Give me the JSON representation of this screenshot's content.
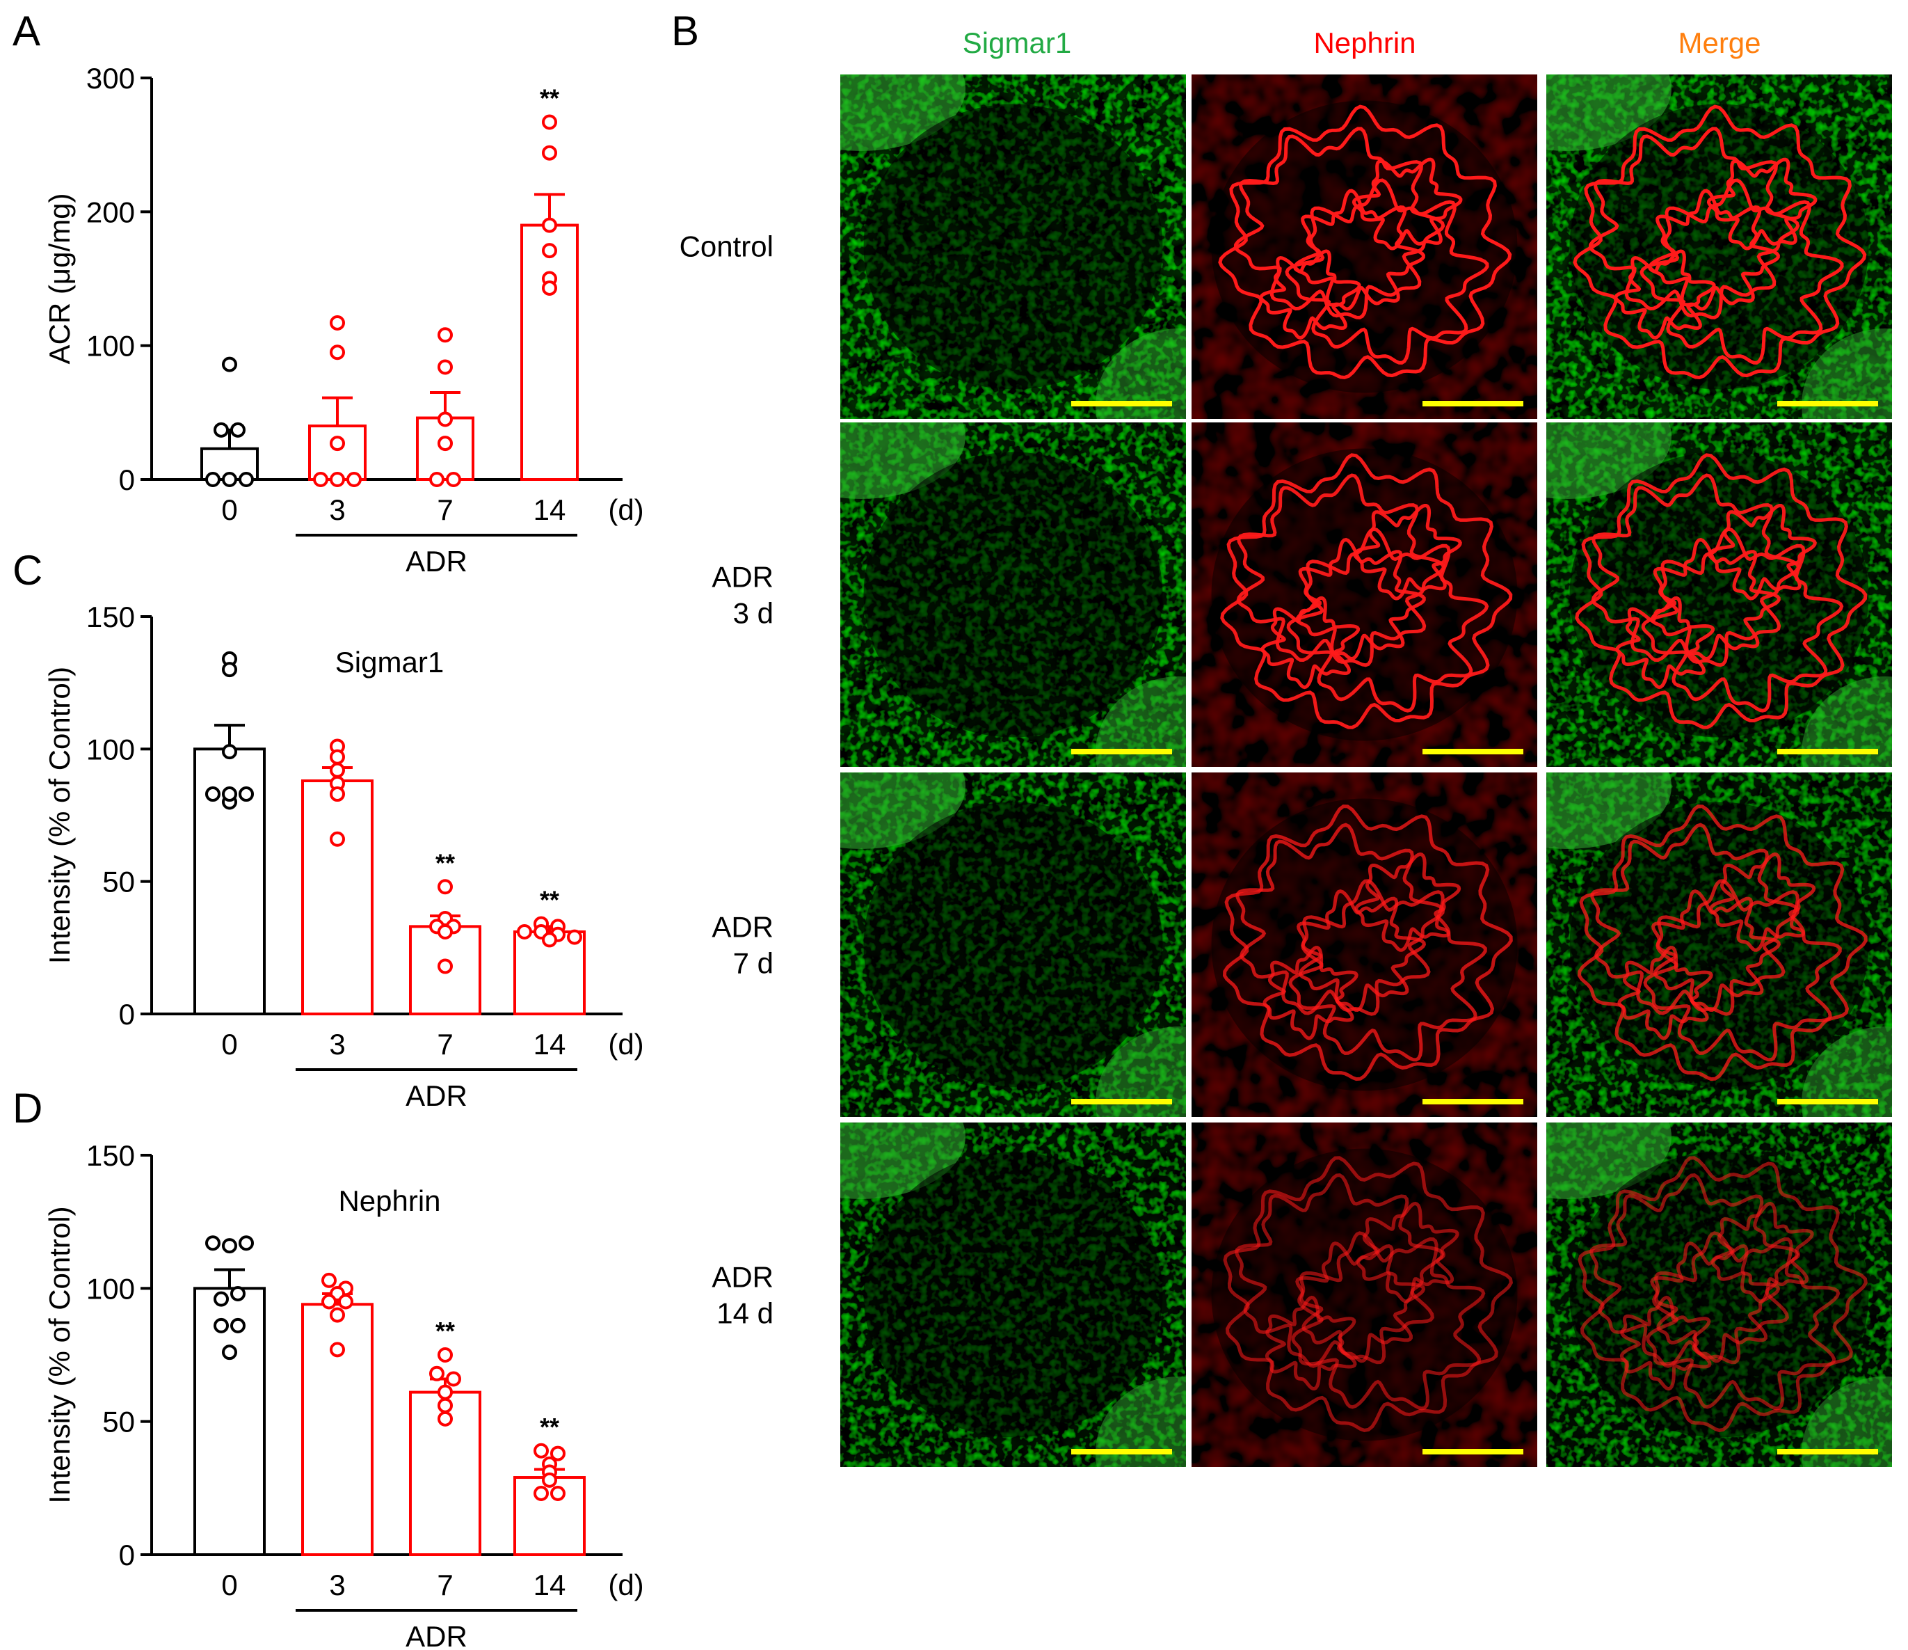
{
  "panels": {
    "A": "A",
    "B": "B",
    "C": "C",
    "D": "D"
  },
  "colors": {
    "control": "#000000",
    "adr": "#ff0000",
    "sigmar1_title": "#22aa44",
    "nephrin_title": "#ff0000",
    "merge_title": "#ff7f0e",
    "scale_bar": "#ffff00"
  },
  "chart_data": [
    {
      "id": "A",
      "type": "bar",
      "title": "",
      "ylabel": "ACR (μg/mg)",
      "xlabel_unit": "(d)",
      "group_label": "ADR",
      "ylim": [
        0,
        300
      ],
      "yticks": [
        0,
        100,
        200,
        300
      ],
      "categories": [
        "0",
        "3",
        "7",
        "14"
      ],
      "values": [
        23,
        40,
        46,
        190
      ],
      "sem": [
        14,
        21,
        19,
        23
      ],
      "points": [
        [
          86,
          37,
          37,
          0,
          0,
          0
        ],
        [
          117,
          95,
          27,
          0,
          0,
          0
        ],
        [
          108,
          84,
          45,
          27,
          0,
          0
        ],
        [
          267,
          244,
          190,
          171,
          150,
          143
        ]
      ],
      "significance": [
        "",
        "",
        "",
        "**"
      ]
    },
    {
      "id": "C",
      "type": "bar",
      "title": "Sigmar1",
      "ylabel": "Intensity (% of Control)",
      "xlabel_unit": "(d)",
      "group_label": "ADR",
      "ylim": [
        0,
        150
      ],
      "yticks": [
        0,
        50,
        100,
        150
      ],
      "categories": [
        "0",
        "3",
        "7",
        "14"
      ],
      "values": [
        100,
        88,
        33,
        31
      ],
      "sem": [
        9,
        5,
        4,
        2
      ],
      "points": [
        [
          134,
          130,
          99,
          83,
          80,
          83,
          83
        ],
        [
          101,
          97,
          92,
          87,
          83,
          66
        ],
        [
          48,
          36,
          33,
          33,
          31,
          18
        ],
        [
          34,
          33,
          31,
          31,
          30,
          29,
          28
        ]
      ],
      "significance": [
        "",
        "",
        "**",
        "**"
      ]
    },
    {
      "id": "D",
      "type": "bar",
      "title": "Nephrin",
      "ylabel": "Intensity (% of Control)",
      "xlabel_unit": "(d)",
      "group_label": "ADR",
      "ylim": [
        0,
        150
      ],
      "yticks": [
        0,
        50,
        100,
        150
      ],
      "categories": [
        "0",
        "3",
        "7",
        "14"
      ],
      "values": [
        100,
        94,
        61,
        29
      ],
      "sem": [
        7,
        4,
        5,
        3
      ],
      "points": [
        [
          117,
          116,
          117,
          96,
          98,
          86,
          86,
          76
        ],
        [
          103,
          100,
          98,
          95,
          95,
          90,
          77
        ],
        [
          75,
          68,
          66,
          61,
          56,
          51
        ],
        [
          39,
          38,
          34,
          31,
          28,
          23,
          23
        ]
      ],
      "significance": [
        "",
        "",
        "**",
        "**"
      ]
    }
  ],
  "micrographs": {
    "column_titles": [
      "Sigmar1",
      "Nephrin",
      "Merge"
    ],
    "row_labels": [
      [
        "Control"
      ],
      [
        "ADR",
        "3 d"
      ],
      [
        "ADR",
        "7 d"
      ],
      [
        "ADR",
        "14 d"
      ]
    ],
    "row_nephrin_intensity": [
      1.0,
      0.95,
      0.75,
      0.55
    ],
    "row_sigmar1_intensity": [
      1.0,
      0.75,
      0.5,
      0.35
    ]
  }
}
